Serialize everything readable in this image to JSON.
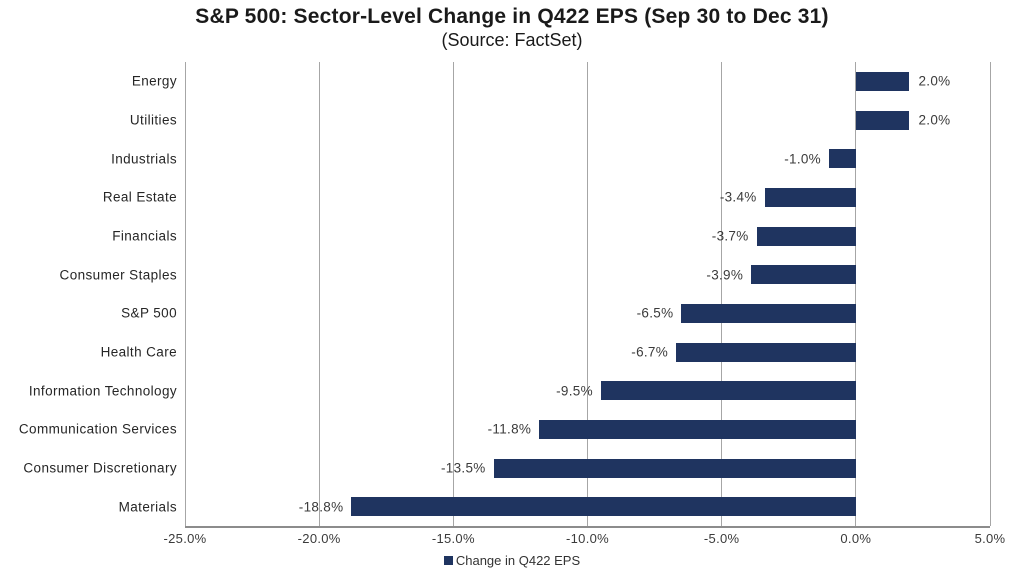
{
  "chart_data": {
    "type": "bar",
    "orientation": "horizontal",
    "title": "S&P 500: Sector-Level Change in Q422 EPS (Sep 30 to Dec 31)",
    "subtitle": "(Source: FactSet)",
    "categories": [
      "Energy",
      "Utilities",
      "Industrials",
      "Real Estate",
      "Financials",
      "Consumer Staples",
      "S&P 500",
      "Health Care",
      "Information Technology",
      "Communication Services",
      "Consumer Discretionary",
      "Materials"
    ],
    "values": [
      2.0,
      2.0,
      -1.0,
      -3.4,
      -3.7,
      -3.9,
      -6.5,
      -6.7,
      -9.5,
      -11.8,
      -13.5,
      -18.8
    ],
    "value_labels": [
      "2.0%",
      "2.0%",
      "-1.0%",
      "-3.4%",
      "-3.7%",
      "-3.9%",
      "-6.5%",
      "-6.7%",
      "-9.5%",
      "-11.8%",
      "-13.5%",
      "-18.8%"
    ],
    "xlabel": "",
    "ylabel": "",
    "xlim": [
      -25.0,
      5.0
    ],
    "xticks": [
      -25.0,
      -20.0,
      -15.0,
      -10.0,
      -5.0,
      0.0,
      5.0
    ],
    "xtick_labels": [
      "-25.0%",
      "-20.0%",
      "-15.0%",
      "-10.0%",
      "-5.0%",
      "0.0%",
      "5.0%"
    ],
    "legend": [
      "Change in Q422 EPS"
    ],
    "legend_position": "bottom",
    "grid": "vertical",
    "colors": {
      "bar": "#1f3460",
      "gridline": "#a6a6a6",
      "axis_line": "#8c8c8c",
      "text": "#262626"
    }
  }
}
